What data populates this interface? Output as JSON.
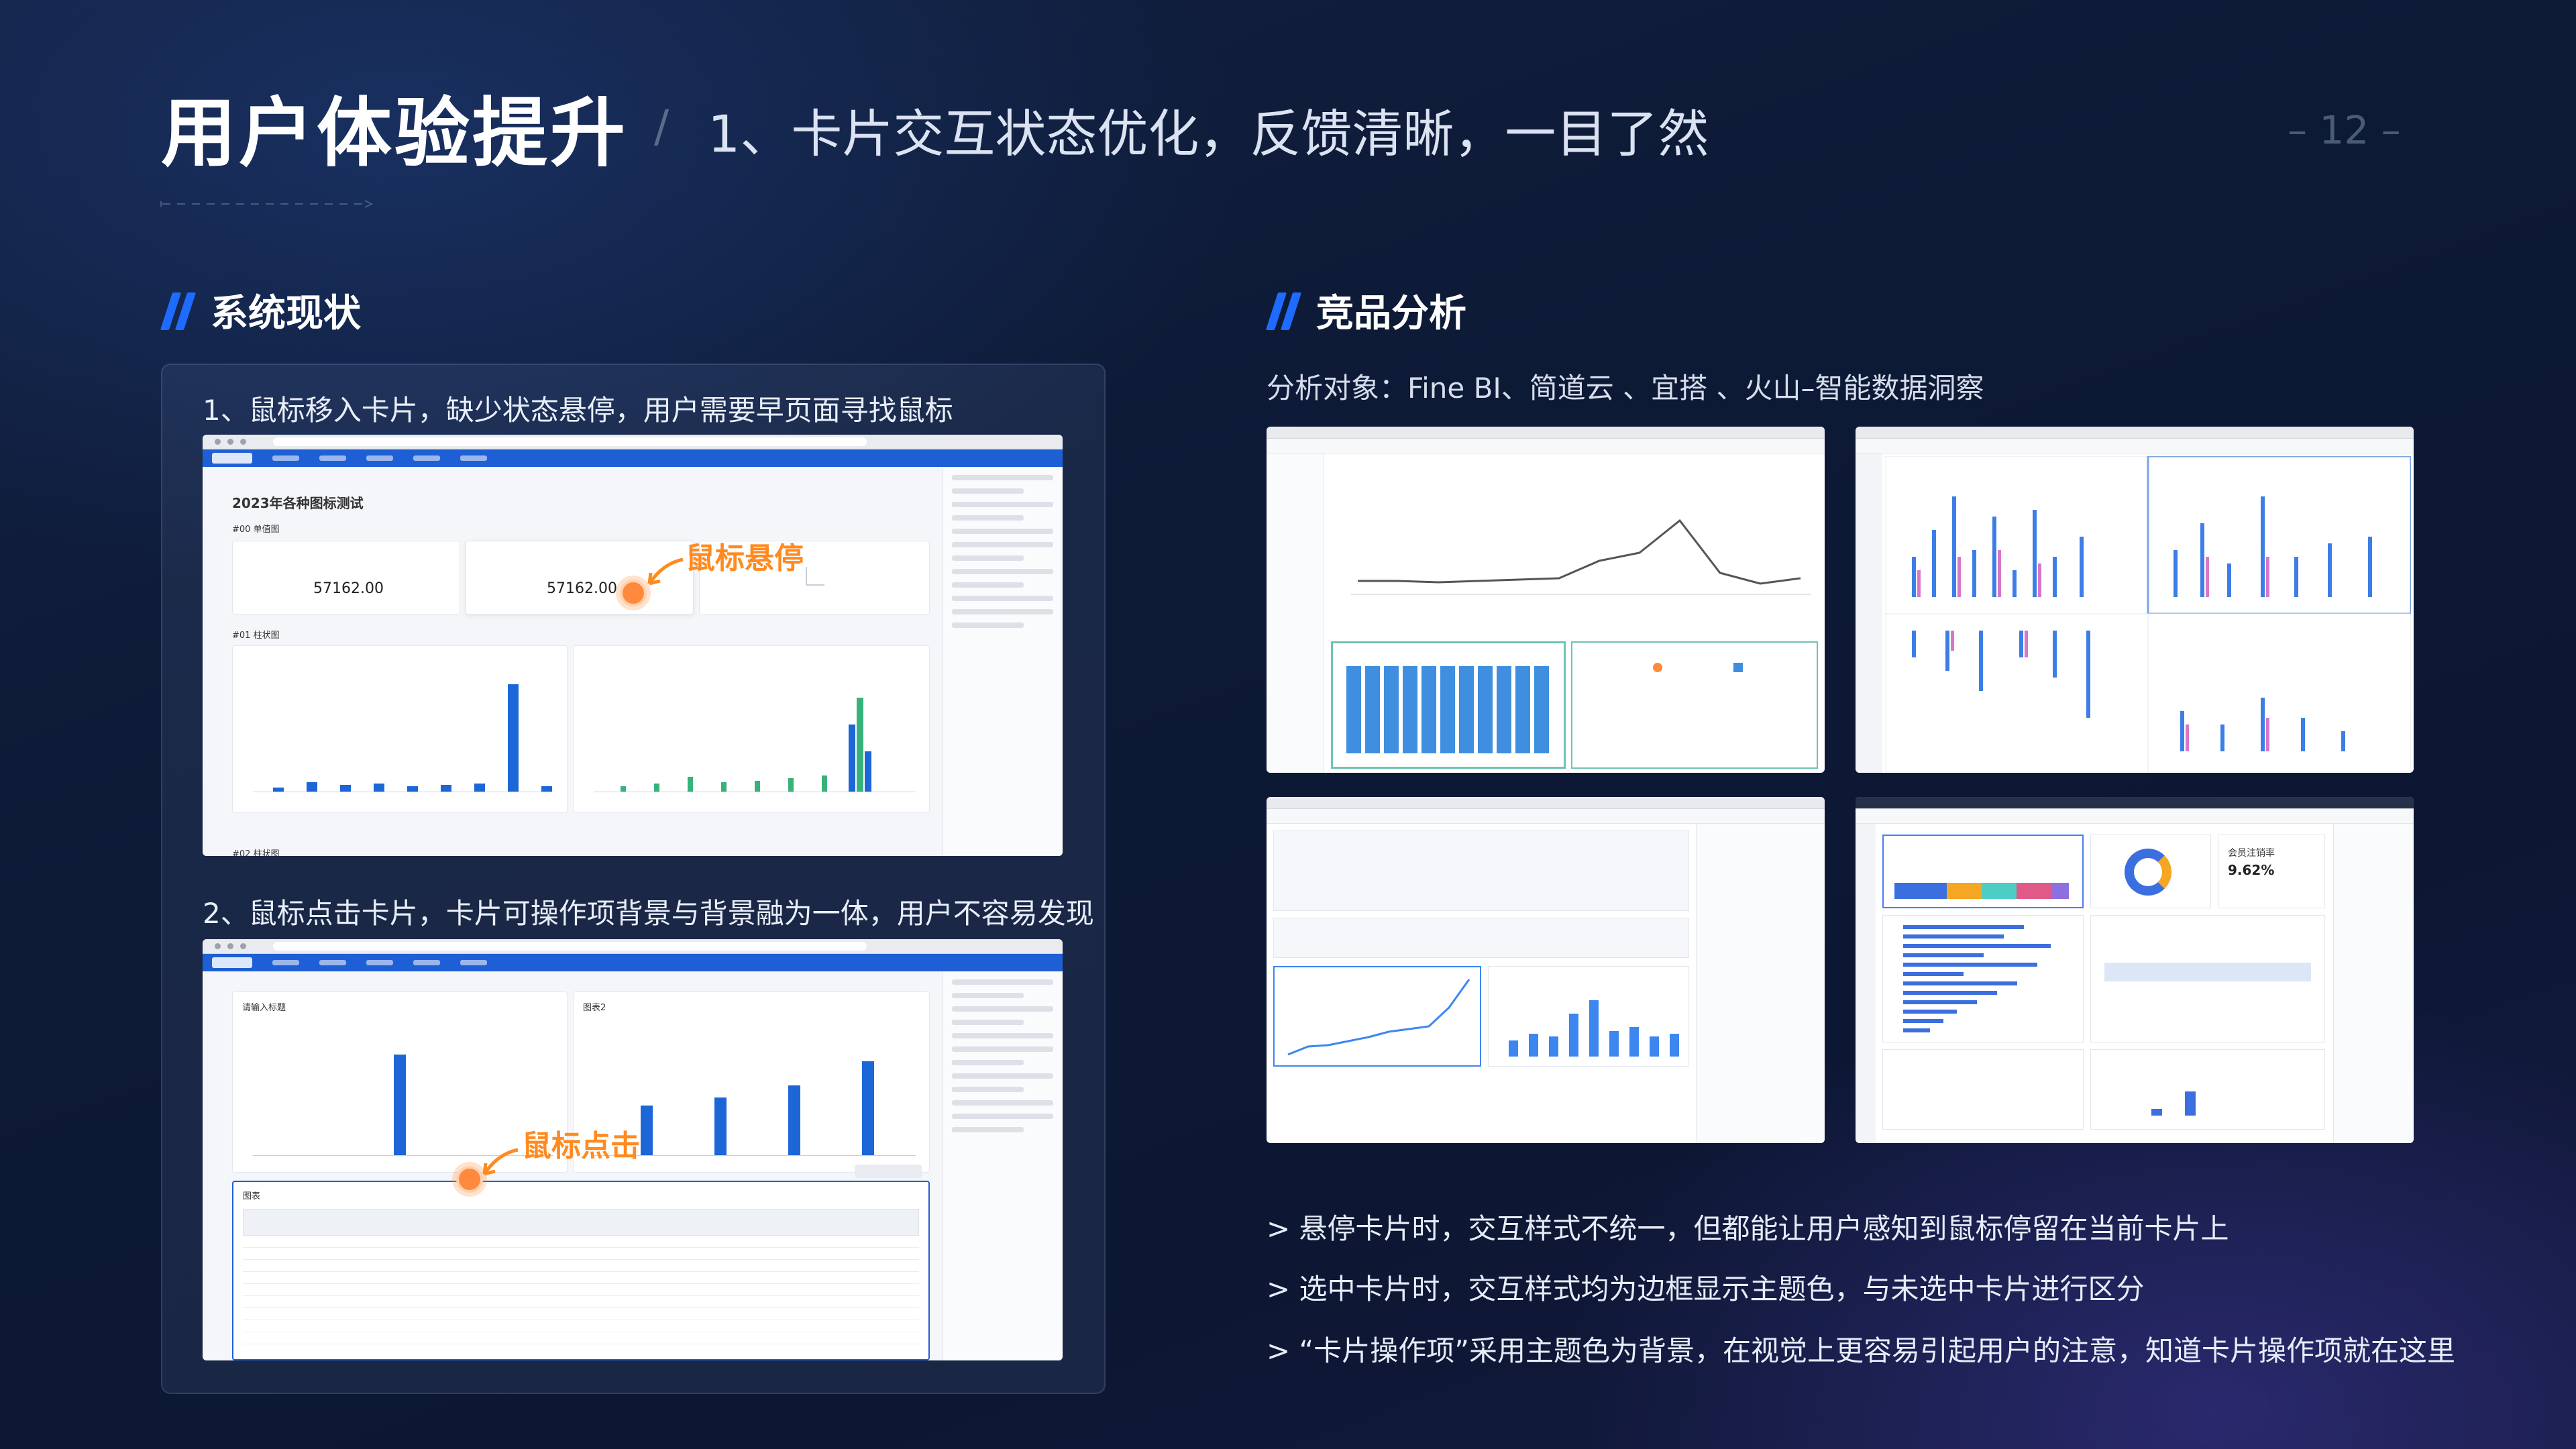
{
  "header": {
    "title": "用户体验提升",
    "separator": "/",
    "subtitle": "1、卡片交互状态优化，反馈清晰，一目了然",
    "page_number": "– 12 –"
  },
  "current": {
    "heading": "系统现状",
    "issue1": "1、鼠标移入卡片，缺少状态悬停，用户需要早页面寻找鼠标",
    "issue2": "2、鼠标点击卡片，卡片可操作项背景与背景融为一体，用户不容易发现",
    "screenshot1": {
      "dashboard_title": "2023年各种图标测试",
      "section_a": "#00 单值图",
      "card1_value": "57162.00",
      "card2_value": "57162.00",
      "section_b": "#01 柱状图",
      "section_c": "#02 柱状图",
      "hover_callout": "鼠标悬停"
    },
    "screenshot2": {
      "card1_title": "请输入标题",
      "card2_title": "图表2",
      "table_title": "图表",
      "click_callout": "鼠标点击"
    }
  },
  "competitor": {
    "heading": "竞品分析",
    "targets": "分析对象：Fine BI、简道云 、宜搭 、火山–智能数据洞察",
    "panels": [
      "Fine BI",
      "简道云",
      "宜搭",
      "火山–智能数据洞察"
    ],
    "rate_label": "会员注销率",
    "rate_value": "9.62%"
  },
  "conclusions": [
    "> 悬停卡片时，交互样式不统一，但都能让用户感知到鼠标停留在当前卡片上",
    "> 选中卡片时，交互样式均为边框显示主题色，与未选中卡片进行区分",
    "> “卡片操作项”采用主题色为背景，在视觉上更容易引起用户的注意，知道卡片操作项就在这里"
  ],
  "colors": {
    "accent": "#1e6cff",
    "callout": "#ff8a1f",
    "theme_bar": "#1f5fd6"
  }
}
